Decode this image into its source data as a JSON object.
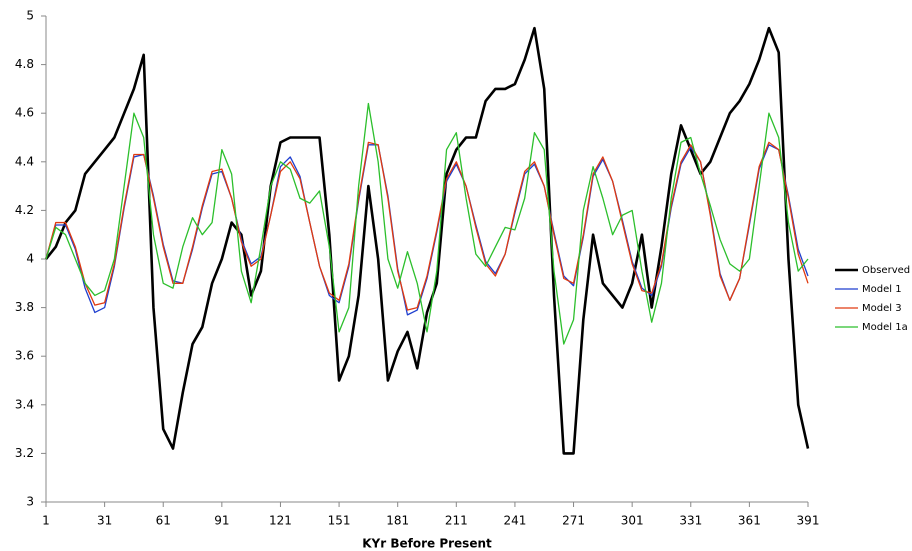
{
  "chart_data": {
    "type": "line",
    "x_label": "KYr Before Present",
    "x": [
      1,
      6,
      11,
      16,
      21,
      26,
      31,
      36,
      41,
      46,
      51,
      56,
      61,
      66,
      71,
      76,
      81,
      86,
      91,
      96,
      101,
      106,
      111,
      116,
      121,
      126,
      131,
      136,
      141,
      146,
      151,
      156,
      161,
      166,
      171,
      176,
      181,
      186,
      191,
      196,
      201,
      206,
      211,
      216,
      221,
      226,
      231,
      236,
      241,
      246,
      251,
      256,
      261,
      266,
      271,
      276,
      281,
      286,
      291,
      296,
      301,
      306,
      311,
      316,
      321,
      326,
      331,
      336,
      341,
      346,
      351,
      356,
      361,
      366,
      371,
      376,
      381,
      386,
      391
    ],
    "xlim": [
      1,
      391
    ],
    "xticks": [
      1,
      31,
      61,
      91,
      121,
      151,
      181,
      211,
      241,
      271,
      301,
      331,
      361,
      391
    ],
    "ylim": [
      3,
      5
    ],
    "yticks": [
      3,
      3.2,
      3.4,
      3.6,
      3.8,
      4,
      4.2,
      4.4,
      4.6,
      4.8,
      5
    ],
    "grid": false,
    "legend": "right",
    "series": [
      {
        "name": "Observed",
        "color": "#000000",
        "width": 2.6,
        "values": [
          4.0,
          4.05,
          4.15,
          4.2,
          4.35,
          4.4,
          4.45,
          4.5,
          4.6,
          4.7,
          4.84,
          3.8,
          3.3,
          3.22,
          3.45,
          3.65,
          3.72,
          3.9,
          4.0,
          4.15,
          4.1,
          3.85,
          3.95,
          4.3,
          4.48,
          4.5,
          4.5,
          4.5,
          4.5,
          4.1,
          3.5,
          3.6,
          3.85,
          4.3,
          4.0,
          3.5,
          3.62,
          3.7,
          3.55,
          3.78,
          3.9,
          4.35,
          4.45,
          4.5,
          4.5,
          4.65,
          4.7,
          4.7,
          4.72,
          4.82,
          4.95,
          4.7,
          3.85,
          3.2,
          3.2,
          3.75,
          4.1,
          3.9,
          3.85,
          3.8,
          3.9,
          4.1,
          3.8,
          4.05,
          4.35,
          4.55,
          4.45,
          4.35,
          4.4,
          4.5,
          4.6,
          4.65,
          4.72,
          4.82,
          4.95,
          4.85,
          4.0,
          3.4,
          3.22
        ]
      },
      {
        "name": "Model 1",
        "color": "#1f3fcf",
        "width": 1.3,
        "values": [
          4.0,
          4.14,
          4.14,
          4.04,
          3.88,
          3.78,
          3.8,
          3.97,
          4.21,
          4.42,
          4.43,
          4.26,
          4.06,
          3.91,
          3.9,
          4.04,
          4.21,
          4.35,
          4.36,
          4.25,
          4.08,
          3.98,
          4.01,
          4.18,
          4.38,
          4.42,
          4.34,
          4.15,
          3.97,
          3.85,
          3.82,
          3.97,
          4.24,
          4.47,
          4.47,
          4.26,
          3.96,
          3.77,
          3.79,
          3.92,
          4.11,
          4.32,
          4.39,
          4.3,
          4.14,
          3.99,
          3.94,
          4.02,
          4.19,
          4.35,
          4.39,
          4.3,
          4.11,
          3.93,
          3.89,
          4.09,
          4.34,
          4.41,
          4.32,
          4.16,
          3.99,
          3.88,
          3.85,
          3.97,
          4.21,
          4.39,
          4.46,
          4.4,
          4.19,
          3.94,
          3.83,
          3.92,
          4.14,
          4.37,
          4.47,
          4.45,
          4.26,
          4.04,
          3.93
        ]
      },
      {
        "name": "Model 3",
        "color": "#e03a10",
        "width": 1.3,
        "values": [
          4.0,
          4.15,
          4.15,
          4.05,
          3.9,
          3.81,
          3.82,
          3.98,
          4.22,
          4.43,
          4.43,
          4.25,
          4.05,
          3.9,
          3.9,
          4.05,
          4.22,
          4.36,
          4.37,
          4.25,
          4.07,
          3.97,
          4.0,
          4.18,
          4.36,
          4.4,
          4.33,
          4.15,
          3.97,
          3.86,
          3.83,
          3.98,
          4.25,
          4.48,
          4.47,
          4.25,
          3.95,
          3.79,
          3.8,
          3.93,
          4.12,
          4.33,
          4.4,
          4.3,
          4.13,
          3.98,
          3.93,
          4.02,
          4.2,
          4.36,
          4.4,
          4.3,
          4.1,
          3.92,
          3.9,
          4.1,
          4.35,
          4.42,
          4.32,
          4.15,
          3.98,
          3.87,
          3.86,
          3.98,
          4.22,
          4.4,
          4.47,
          4.4,
          4.18,
          3.93,
          3.83,
          3.92,
          4.15,
          4.38,
          4.48,
          4.45,
          4.25,
          4.02,
          3.9
        ]
      },
      {
        "name": "Model 1a",
        "color": "#2cbf2c",
        "width": 1.3,
        "values": [
          4.0,
          4.13,
          4.1,
          4.0,
          3.9,
          3.85,
          3.87,
          4.0,
          4.3,
          4.6,
          4.5,
          4.1,
          3.9,
          3.88,
          4.05,
          4.17,
          4.1,
          4.15,
          4.45,
          4.35,
          3.95,
          3.82,
          4.05,
          4.3,
          4.4,
          4.37,
          4.25,
          4.23,
          4.28,
          4.05,
          3.7,
          3.8,
          4.3,
          4.64,
          4.4,
          4.0,
          3.88,
          4.03,
          3.9,
          3.7,
          3.95,
          4.45,
          4.52,
          4.25,
          4.02,
          3.97,
          4.05,
          4.13,
          4.12,
          4.25,
          4.52,
          4.45,
          3.95,
          3.65,
          3.75,
          4.2,
          4.38,
          4.25,
          4.1,
          4.18,
          4.2,
          3.95,
          3.74,
          3.9,
          4.25,
          4.48,
          4.5,
          4.35,
          4.22,
          4.08,
          3.98,
          3.95,
          4.0,
          4.3,
          4.6,
          4.5,
          4.15,
          3.95,
          4.0
        ]
      }
    ]
  }
}
